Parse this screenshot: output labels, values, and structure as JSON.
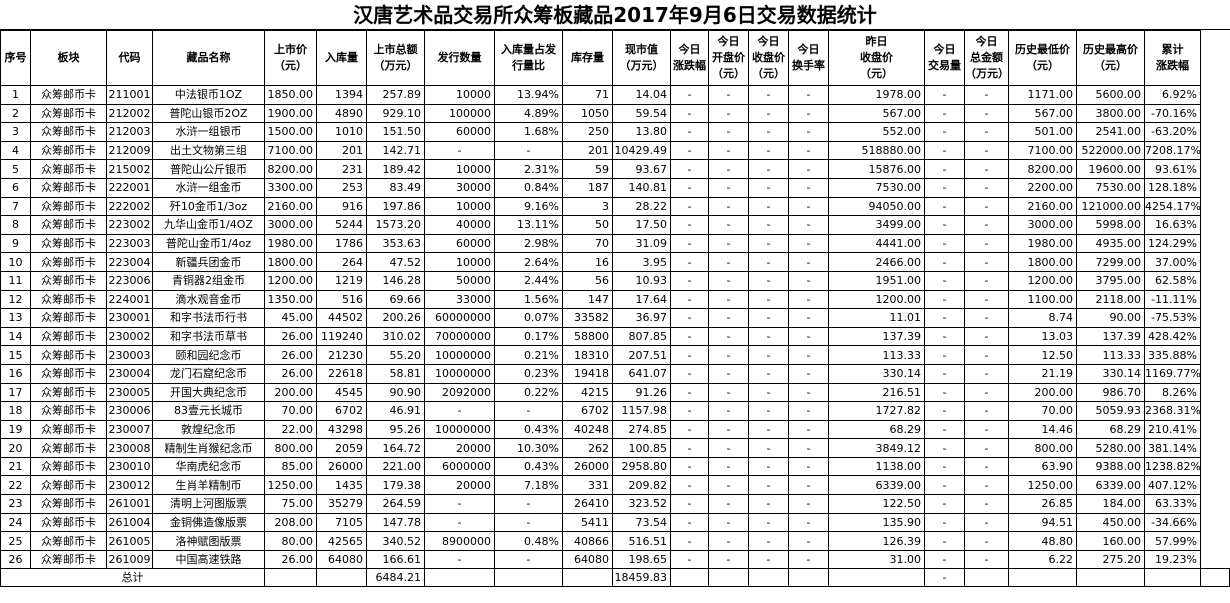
{
  "title": "汉唐艺术品交易所众筹板藏品2017年9月6日交易数据统计",
  "headers": [
    [
      "序号"
    ],
    [
      "板块"
    ],
    [
      "代码"
    ],
    [
      "藏品名称"
    ],
    [
      "上市价",
      "（元）"
    ],
    [
      "入库量"
    ],
    [
      "上市总额",
      "（万元）"
    ],
    [
      "发行数量"
    ],
    [
      "入库量占发",
      "行量比"
    ],
    [
      "库存量"
    ],
    [
      "现市值",
      "（万元）"
    ],
    [
      "今日",
      "涨跌幅"
    ],
    [
      "今日",
      "开盘价",
      "（元）"
    ],
    [
      "今日",
      "收盘价",
      "（元）"
    ],
    [
      "今日",
      "换手率"
    ],
    [
      "昨日",
      "收盘价",
      "（元）"
    ],
    [
      "今日",
      "交易量"
    ],
    [
      "今日",
      "总金额",
      "（万元）"
    ],
    [
      "历史最低价",
      "（元）"
    ],
    [
      "历史最高价",
      "（元）"
    ],
    [
      "累计",
      "涨跌幅"
    ]
  ],
  "rows": [
    [
      "1",
      "众筹邮币卡",
      "211001",
      "中法银币1OZ",
      "1850.00",
      "1394",
      "257.89",
      "10000",
      "13.94%",
      "71",
      "14.04",
      "-",
      "-",
      "-",
      "-",
      "1978.00",
      "-",
      "-",
      "1171.00",
      "5600.00",
      "6.92%"
    ],
    [
      "2",
      "众筹邮币卡",
      "212002",
      "普陀山银币2OZ",
      "1900.00",
      "4890",
      "929.10",
      "100000",
      "4.89%",
      "1050",
      "59.54",
      "-",
      "-",
      "-",
      "-",
      "567.00",
      "-",
      "-",
      "567.00",
      "3800.00",
      "-70.16%"
    ],
    [
      "3",
      "众筹邮币卡",
      "212003",
      "水浒一组银币",
      "1500.00",
      "1010",
      "151.50",
      "60000",
      "1.68%",
      "250",
      "13.80",
      "-",
      "-",
      "-",
      "-",
      "552.00",
      "-",
      "-",
      "501.00",
      "2541.00",
      "-63.20%"
    ],
    [
      "4",
      "众筹邮币卡",
      "212009",
      "出土文物第三组",
      "7100.00",
      "201",
      "142.71",
      "-",
      "-",
      "201",
      "10429.49",
      "-",
      "-",
      "-",
      "-",
      "518880.00",
      "-",
      "-",
      "7100.00",
      "522000.00",
      "7208.17%"
    ],
    [
      "5",
      "众筹邮币卡",
      "215002",
      "普陀山公斤银币",
      "8200.00",
      "231",
      "189.42",
      "10000",
      "2.31%",
      "59",
      "93.67",
      "-",
      "-",
      "-",
      "-",
      "15876.00",
      "-",
      "-",
      "8200.00",
      "19600.00",
      "93.61%"
    ],
    [
      "6",
      "众筹邮币卡",
      "222001",
      "水浒一组金币",
      "3300.00",
      "253",
      "83.49",
      "30000",
      "0.84%",
      "187",
      "140.81",
      "-",
      "-",
      "-",
      "-",
      "7530.00",
      "-",
      "-",
      "2200.00",
      "7530.00",
      "128.18%"
    ],
    [
      "7",
      "众筹邮币卡",
      "222002",
      "歼10金币1/3oz",
      "2160.00",
      "916",
      "197.86",
      "10000",
      "9.16%",
      "3",
      "28.22",
      "-",
      "-",
      "-",
      "-",
      "94050.00",
      "-",
      "-",
      "2160.00",
      "121000.00",
      "4254.17%"
    ],
    [
      "8",
      "众筹邮币卡",
      "223002",
      "九华山金币1/4OZ",
      "3000.00",
      "5244",
      "1573.20",
      "40000",
      "13.11%",
      "50",
      "17.50",
      "-",
      "-",
      "-",
      "-",
      "3499.00",
      "-",
      "-",
      "3000.00",
      "5998.00",
      "16.63%"
    ],
    [
      "9",
      "众筹邮币卡",
      "223003",
      "普陀山金币1/4oz",
      "1980.00",
      "1786",
      "353.63",
      "60000",
      "2.98%",
      "70",
      "31.09",
      "-",
      "-",
      "-",
      "-",
      "4441.00",
      "-",
      "-",
      "1980.00",
      "4935.00",
      "124.29%"
    ],
    [
      "10",
      "众筹邮币卡",
      "223004",
      "新疆兵团金币",
      "1800.00",
      "264",
      "47.52",
      "10000",
      "2.64%",
      "16",
      "3.95",
      "-",
      "-",
      "-",
      "-",
      "2466.00",
      "-",
      "-",
      "1800.00",
      "7299.00",
      "37.00%"
    ],
    [
      "11",
      "众筹邮币卡",
      "223006",
      "青铜器2组金币",
      "1200.00",
      "1219",
      "146.28",
      "50000",
      "2.44%",
      "56",
      "10.93",
      "-",
      "-",
      "-",
      "-",
      "1951.00",
      "-",
      "-",
      "1200.00",
      "3795.00",
      "62.58%"
    ],
    [
      "12",
      "众筹邮币卡",
      "224001",
      "滴水观音金币",
      "1350.00",
      "516",
      "69.66",
      "33000",
      "1.56%",
      "147",
      "17.64",
      "-",
      "-",
      "-",
      "-",
      "1200.00",
      "-",
      "-",
      "1100.00",
      "2118.00",
      "-11.11%"
    ],
    [
      "13",
      "众筹邮币卡",
      "230001",
      "和字书法币行书",
      "45.00",
      "44502",
      "200.26",
      "60000000",
      "0.07%",
      "33582",
      "36.97",
      "-",
      "-",
      "-",
      "-",
      "11.01",
      "-",
      "-",
      "8.74",
      "90.00",
      "-75.53%"
    ],
    [
      "14",
      "众筹邮币卡",
      "230002",
      "和字书法币草书",
      "26.00",
      "119240",
      "310.02",
      "70000000",
      "0.17%",
      "58800",
      "807.85",
      "-",
      "-",
      "-",
      "-",
      "137.39",
      "-",
      "-",
      "13.03",
      "137.39",
      "428.42%"
    ],
    [
      "15",
      "众筹邮币卡",
      "230003",
      "颐和园纪念币",
      "26.00",
      "21230",
      "55.20",
      "10000000",
      "0.21%",
      "18310",
      "207.51",
      "-",
      "-",
      "-",
      "-",
      "113.33",
      "-",
      "-",
      "12.50",
      "113.33",
      "335.88%"
    ],
    [
      "16",
      "众筹邮币卡",
      "230004",
      "龙门石窟纪念币",
      "26.00",
      "22618",
      "58.81",
      "10000000",
      "0.23%",
      "19418",
      "641.07",
      "-",
      "-",
      "-",
      "-",
      "330.14",
      "-",
      "-",
      "21.19",
      "330.14",
      "1169.77%"
    ],
    [
      "17",
      "众筹邮币卡",
      "230005",
      "开国大典纪念币",
      "200.00",
      "4545",
      "90.90",
      "2092000",
      "0.22%",
      "4215",
      "91.26",
      "-",
      "-",
      "-",
      "-",
      "216.51",
      "-",
      "-",
      "200.00",
      "986.70",
      "8.26%"
    ],
    [
      "18",
      "众筹邮币卡",
      "230006",
      "83壹元长城币",
      "70.00",
      "6702",
      "46.91",
      "-",
      "-",
      "6702",
      "1157.98",
      "-",
      "-",
      "-",
      "-",
      "1727.82",
      "-",
      "-",
      "70.00",
      "5059.93",
      "2368.31%"
    ],
    [
      "19",
      "众筹邮币卡",
      "230007",
      "敦煌纪念币",
      "22.00",
      "43298",
      "95.26",
      "10000000",
      "0.43%",
      "40248",
      "274.85",
      "-",
      "-",
      "-",
      "-",
      "68.29",
      "-",
      "-",
      "14.46",
      "68.29",
      "210.41%"
    ],
    [
      "20",
      "众筹邮币卡",
      "230008",
      "精制生肖猴纪念币",
      "800.00",
      "2059",
      "164.72",
      "20000",
      "10.30%",
      "262",
      "100.85",
      "-",
      "-",
      "-",
      "-",
      "3849.12",
      "-",
      "-",
      "800.00",
      "5280.00",
      "381.14%"
    ],
    [
      "21",
      "众筹邮币卡",
      "230010",
      "华南虎纪念币",
      "85.00",
      "26000",
      "221.00",
      "6000000",
      "0.43%",
      "26000",
      "2958.80",
      "-",
      "-",
      "-",
      "-",
      "1138.00",
      "-",
      "-",
      "63.90",
      "9388.00",
      "1238.82%"
    ],
    [
      "22",
      "众筹邮币卡",
      "230012",
      "生肖羊精制币",
      "1250.00",
      "1435",
      "179.38",
      "20000",
      "7.18%",
      "331",
      "209.82",
      "-",
      "-",
      "-",
      "-",
      "6339.00",
      "-",
      "-",
      "1250.00",
      "6339.00",
      "407.12%"
    ],
    [
      "23",
      "众筹邮币卡",
      "261001",
      "清明上河图版票",
      "75.00",
      "35279",
      "264.59",
      "-",
      "-",
      "26410",
      "323.52",
      "-",
      "-",
      "-",
      "-",
      "122.50",
      "-",
      "-",
      "26.85",
      "184.00",
      "63.33%"
    ],
    [
      "24",
      "众筹邮币卡",
      "261004",
      "金铜佛造像版票",
      "208.00",
      "7105",
      "147.78",
      "-",
      "-",
      "5411",
      "73.54",
      "-",
      "-",
      "-",
      "-",
      "135.90",
      "-",
      "-",
      "94.51",
      "450.00",
      "-34.66%"
    ],
    [
      "25",
      "众筹邮币卡",
      "261005",
      "洛神赋图版票",
      "80.00",
      "42565",
      "340.52",
      "8900000",
      "0.48%",
      "40866",
      "516.51",
      "-",
      "-",
      "-",
      "-",
      "126.39",
      "-",
      "-",
      "48.80",
      "160.00",
      "57.99%"
    ],
    [
      "26",
      "众筹邮币卡",
      "261009",
      "中国高速铁路",
      "26.00",
      "64080",
      "166.61",
      "-",
      "-",
      "64080",
      "198.65",
      "-",
      "-",
      "-",
      "-",
      "31.00",
      "-",
      "-",
      "6.22",
      "275.20",
      "19.23%"
    ]
  ],
  "total": {
    "label": "总计",
    "listing_total": "6484.21",
    "market_value_total": "18459.83",
    "dash": "-"
  }
}
